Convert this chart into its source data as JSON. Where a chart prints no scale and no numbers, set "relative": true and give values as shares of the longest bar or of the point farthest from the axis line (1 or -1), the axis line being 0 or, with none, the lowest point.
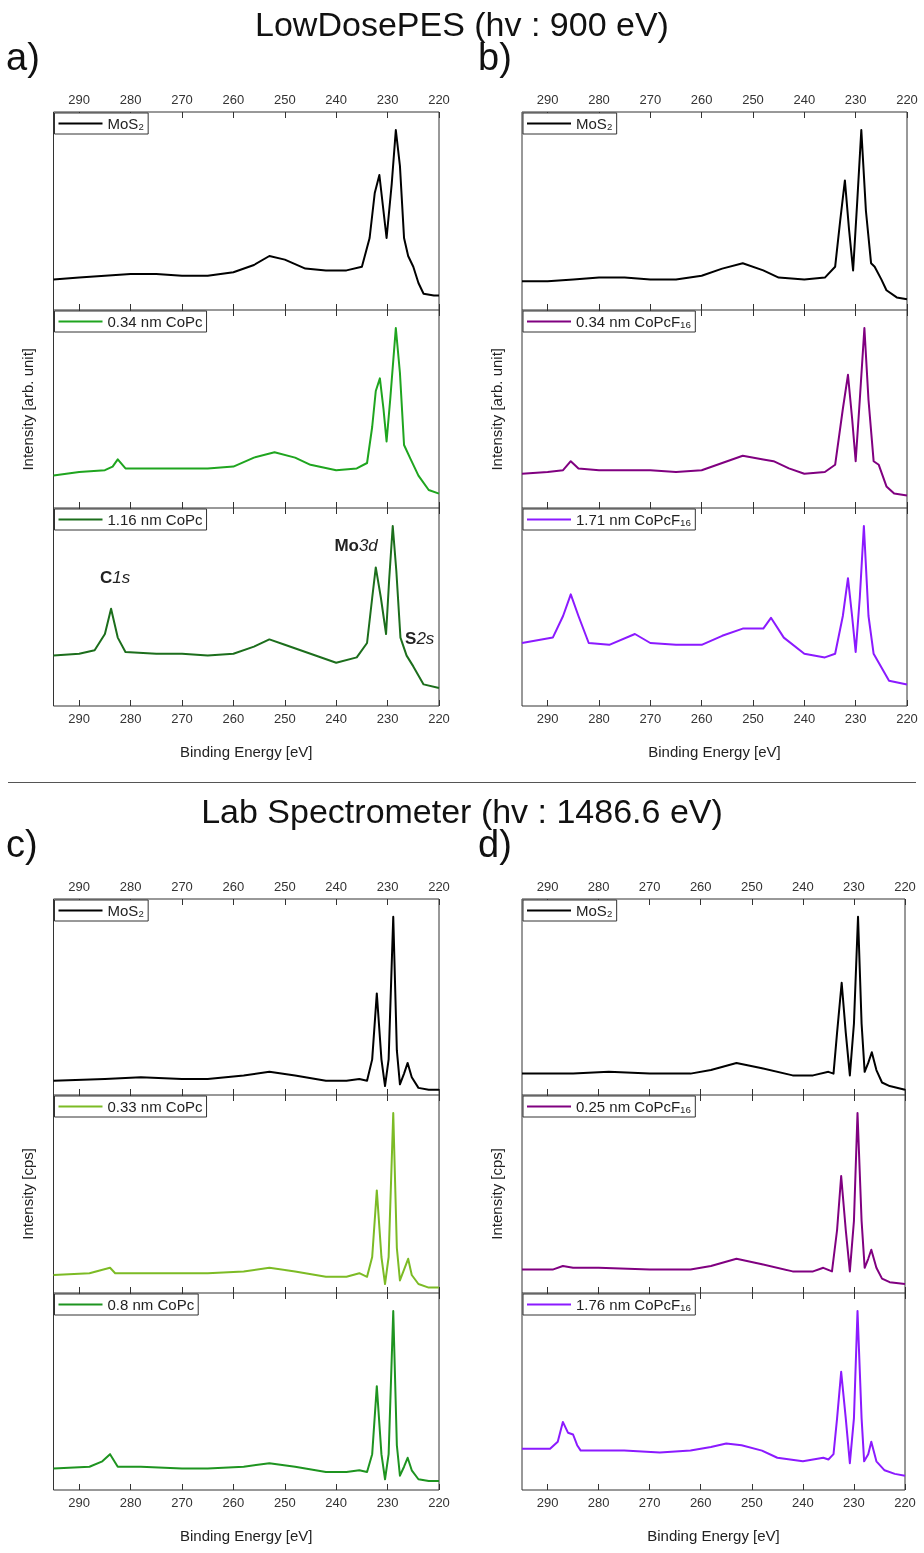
{
  "chart_data": [
    {
      "type": "line",
      "title": "LowDosePES (hv : 900 eV)",
      "annotations": [
        "a)"
      ],
      "relative": true,
      "xlim": [
        295,
        220
      ],
      "x2lim": [
        295,
        220
      ],
      "x2ticks": [
        290,
        280,
        270,
        260,
        250,
        240,
        230,
        220
      ],
      "tick_labels": "x2",
      "legend": "top left",
      "series": [
        {
          "name": "MoS₂",
          "color": "#000000",
          "x": [
            295,
            290,
            285,
            280,
            275,
            270,
            265,
            260,
            256,
            253,
            250,
            246,
            242,
            238,
            235,
            233.5,
            232.5,
            231.6,
            230.8,
            230.2,
            229.2,
            228.4,
            227.6,
            226.8,
            226,
            225,
            224,
            223,
            221,
            220
          ],
          "values": [
            0.17,
            0.18,
            0.19,
            0.2,
            0.2,
            0.19,
            0.19,
            0.21,
            0.25,
            0.3,
            0.28,
            0.23,
            0.22,
            0.22,
            0.24,
            0.4,
            0.65,
            0.75,
            0.55,
            0.4,
            0.7,
            1,
            0.8,
            0.4,
            0.3,
            0.24,
            0.15,
            0.09,
            0.08,
            0.08
          ]
        }
      ]
    },
    {
      "type": "line",
      "ylabel": "Intensity [arb. unit]",
      "relative": true,
      "xlim": [
        295,
        220
      ],
      "xticks": [
        290,
        280,
        270,
        260,
        250,
        240,
        230,
        220
      ],
      "tick_labels": false,
      "legend": "top left",
      "series": [
        {
          "name": "0.34 nm CoPc",
          "color": "#1fa51f",
          "x": [
            295,
            290,
            285,
            283.5,
            282.5,
            281,
            275,
            270,
            265,
            260,
            256,
            252,
            248,
            245,
            240,
            236,
            234,
            233,
            232.3,
            231.5,
            230.8,
            230.2,
            229.5,
            228.4,
            227.6,
            226.8,
            225.5,
            224,
            222,
            220
          ],
          "values": [
            0.18,
            0.2,
            0.21,
            0.23,
            0.27,
            0.22,
            0.22,
            0.22,
            0.22,
            0.23,
            0.28,
            0.31,
            0.28,
            0.24,
            0.21,
            0.22,
            0.25,
            0.45,
            0.65,
            0.72,
            0.55,
            0.37,
            0.6,
            1,
            0.75,
            0.35,
            0.27,
            0.18,
            0.1,
            0.08
          ]
        }
      ]
    },
    {
      "type": "line",
      "xlabel": "Binding Energy [eV]",
      "relative": true,
      "xlim": [
        295,
        220
      ],
      "xticks": [
        290,
        280,
        270,
        260,
        250,
        240,
        230,
        220
      ],
      "tick_labels": "x",
      "legend": "top left",
      "annotations": [
        "C1s",
        "Mo3d",
        "S2s"
      ],
      "series": [
        {
          "name": "1.16 nm CoPc",
          "color": "#1c6e1c",
          "x": [
            295,
            290,
            287,
            285,
            283.8,
            282.5,
            281,
            275,
            270,
            265,
            260,
            256,
            253,
            250,
            245,
            240,
            236,
            234,
            233,
            232.3,
            231.3,
            230.3,
            229.7,
            229,
            228.3,
            227.5,
            226.3,
            225,
            223,
            220
          ],
          "values": [
            0.28,
            0.29,
            0.31,
            0.4,
            0.54,
            0.38,
            0.3,
            0.29,
            0.29,
            0.28,
            0.29,
            0.33,
            0.37,
            0.34,
            0.29,
            0.24,
            0.27,
            0.35,
            0.6,
            0.77,
            0.6,
            0.4,
            0.7,
            1,
            0.75,
            0.38,
            0.28,
            0.22,
            0.12,
            0.1
          ]
        }
      ]
    },
    {
      "type": "line",
      "annotations": [
        "b)"
      ],
      "relative": true,
      "xlim": [
        295,
        220
      ],
      "x2lim": [
        295,
        220
      ],
      "x2ticks": [
        290,
        280,
        270,
        260,
        250,
        240,
        230,
        220
      ],
      "tick_labels": "x2",
      "legend": "top left",
      "series": [
        {
          "name": "MoS₂",
          "color": "#000000",
          "x": [
            295,
            290,
            285,
            280,
            275,
            270,
            265,
            260,
            256,
            252,
            248,
            245,
            240,
            236,
            234,
            233,
            232.1,
            231.3,
            230.5,
            229.7,
            228.9,
            228,
            227,
            226.3,
            225,
            224,
            222,
            220
          ],
          "values": [
            0.16,
            0.16,
            0.17,
            0.18,
            0.18,
            0.17,
            0.17,
            0.19,
            0.23,
            0.26,
            0.22,
            0.18,
            0.17,
            0.18,
            0.24,
            0.5,
            0.72,
            0.45,
            0.22,
            0.6,
            1,
            0.55,
            0.26,
            0.24,
            0.17,
            0.11,
            0.07,
            0.06
          ]
        }
      ]
    },
    {
      "type": "line",
      "ylabel": "Intensity [arb. unit]",
      "relative": true,
      "xlim": [
        295,
        220
      ],
      "xticks": [
        290,
        280,
        270,
        260,
        250,
        240,
        230,
        220
      ],
      "tick_labels": false,
      "legend": "top left",
      "series": [
        {
          "name": "0.34 nm CoPcF₁₆",
          "color": "#800080",
          "x": [
            295,
            290,
            287,
            285.5,
            284,
            280,
            275,
            270,
            265,
            260,
            256,
            252,
            248,
            246,
            243,
            240,
            236,
            234,
            232.5,
            231.5,
            230.7,
            230,
            229.2,
            228.3,
            227.5,
            226.5,
            225.5,
            224,
            222.5,
            220
          ],
          "values": [
            0.19,
            0.2,
            0.21,
            0.26,
            0.22,
            0.21,
            0.21,
            0.21,
            0.2,
            0.21,
            0.25,
            0.29,
            0.27,
            0.26,
            0.22,
            0.19,
            0.2,
            0.24,
            0.55,
            0.74,
            0.5,
            0.26,
            0.6,
            1,
            0.6,
            0.26,
            0.24,
            0.12,
            0.08,
            0.07
          ]
        }
      ]
    },
    {
      "type": "line",
      "xlabel": "Binding Energy [eV]",
      "relative": true,
      "xlim": [
        295,
        220
      ],
      "xticks": [
        290,
        280,
        270,
        260,
        250,
        240,
        230,
        220
      ],
      "tick_labels": "x",
      "legend": "top left",
      "series": [
        {
          "name": "1.71 nm CoPcF₁₆",
          "color": "#8b1aff",
          "x": [
            295,
            289,
            287,
            285.5,
            284,
            282,
            278,
            273,
            270,
            265,
            260,
            256,
            252,
            248,
            246.5,
            244,
            240,
            236,
            234,
            232.5,
            231.5,
            230.7,
            230,
            229.2,
            228.4,
            227.5,
            226.5,
            225.5,
            223.5,
            220
          ],
          "values": [
            0.35,
            0.38,
            0.5,
            0.62,
            0.5,
            0.35,
            0.34,
            0.4,
            0.35,
            0.34,
            0.34,
            0.39,
            0.43,
            0.43,
            0.49,
            0.38,
            0.29,
            0.27,
            0.29,
            0.5,
            0.71,
            0.5,
            0.3,
            0.6,
            1,
            0.5,
            0.29,
            0.24,
            0.14,
            0.12
          ]
        }
      ]
    },
    {
      "type": "line",
      "title": "Lab Spectrometer (hv : 1486.6 eV)",
      "annotations": [
        "c)"
      ],
      "relative": true,
      "xlim": [
        295,
        220
      ],
      "x2lim": [
        295,
        220
      ],
      "x2ticks": [
        290,
        280,
        270,
        260,
        250,
        240,
        230,
        220
      ],
      "tick_labels": "x2",
      "legend": "top left",
      "series": [
        {
          "name": "MoS₂",
          "color": "#000000",
          "x": [
            295,
            285,
            278,
            270,
            265,
            258,
            253,
            248,
            242,
            238,
            235.5,
            234,
            233,
            232.1,
            231.2,
            230.5,
            229.8,
            228.9,
            228.2,
            227.6,
            226.8,
            226.1,
            225.3,
            224,
            222,
            220
          ],
          "values": [
            0.08,
            0.09,
            0.1,
            0.09,
            0.09,
            0.11,
            0.13,
            0.11,
            0.08,
            0.08,
            0.09,
            0.08,
            0.2,
            0.57,
            0.2,
            0.05,
            0.2,
            1,
            0.25,
            0.06,
            0.12,
            0.18,
            0.1,
            0.04,
            0.03,
            0.03
          ]
        }
      ]
    },
    {
      "type": "line",
      "ylabel": "Intensity [cps]",
      "relative": true,
      "xlim": [
        295,
        220
      ],
      "xticks": [
        290,
        280,
        270,
        260,
        250,
        240,
        230,
        220
      ],
      "tick_labels": false,
      "legend": "top left",
      "series": [
        {
          "name": "0.33 nm CoPc",
          "color": "#7cbb25",
          "x": [
            295,
            288,
            284,
            283,
            278,
            270,
            265,
            258,
            253,
            248,
            242,
            238,
            235.5,
            234,
            233,
            232.1,
            231.2,
            230.5,
            229.8,
            228.9,
            228.2,
            227.6,
            226.8,
            226,
            225.3,
            224,
            222,
            220
          ],
          "values": [
            0.1,
            0.11,
            0.14,
            0.11,
            0.11,
            0.11,
            0.11,
            0.12,
            0.14,
            0.12,
            0.09,
            0.09,
            0.11,
            0.09,
            0.2,
            0.57,
            0.2,
            0.05,
            0.2,
            1,
            0.25,
            0.07,
            0.13,
            0.19,
            0.1,
            0.05,
            0.03,
            0.03
          ]
        }
      ]
    },
    {
      "type": "line",
      "xlabel": "Binding Energy [eV]",
      "relative": true,
      "xlim": [
        295,
        220
      ],
      "xticks": [
        290,
        280,
        270,
        260,
        250,
        240,
        230,
        220
      ],
      "tick_labels": "x",
      "legend": "top left",
      "series": [
        {
          "name": "0.8 nm CoPc",
          "color": "#1e9420",
          "x": [
            295,
            288,
            285.5,
            284,
            282.5,
            278,
            270,
            265,
            258,
            253,
            248,
            242,
            238,
            235.5,
            234,
            233,
            232.1,
            231.2,
            230.5,
            229.8,
            228.9,
            228.2,
            227.6,
            226.8,
            226.1,
            225.3,
            224,
            222,
            220
          ],
          "values": [
            0.12,
            0.13,
            0.16,
            0.2,
            0.13,
            0.13,
            0.12,
            0.12,
            0.13,
            0.15,
            0.13,
            0.1,
            0.1,
            0.11,
            0.1,
            0.2,
            0.58,
            0.2,
            0.06,
            0.2,
            1,
            0.25,
            0.08,
            0.13,
            0.18,
            0.11,
            0.06,
            0.05,
            0.05
          ]
        }
      ]
    },
    {
      "type": "line",
      "annotations": [
        "d)"
      ],
      "relative": true,
      "xlim": [
        295,
        220
      ],
      "x2lim": [
        295,
        220
      ],
      "x2ticks": [
        290,
        280,
        270,
        260,
        250,
        240,
        230,
        220
      ],
      "tick_labels": "x2",
      "legend": "top left",
      "series": [
        {
          "name": "MoS₂",
          "color": "#000000",
          "x": [
            295,
            285,
            278,
            270,
            262,
            258,
            253,
            248,
            242,
            238,
            235,
            234,
            233.3,
            232.4,
            231.6,
            230.8,
            230,
            229.2,
            228.5,
            227.9,
            227.2,
            226.5,
            225.6,
            224.5,
            223,
            220
          ],
          "values": [
            0.12,
            0.12,
            0.13,
            0.12,
            0.12,
            0.14,
            0.18,
            0.15,
            0.11,
            0.11,
            0.13,
            0.12,
            0.35,
            0.63,
            0.35,
            0.11,
            0.4,
            1,
            0.4,
            0.13,
            0.18,
            0.24,
            0.14,
            0.07,
            0.05,
            0.03
          ]
        }
      ]
    },
    {
      "type": "line",
      "ylabel": "Intensity [cps]",
      "relative": true,
      "xlim": [
        295,
        220
      ],
      "xticks": [
        290,
        280,
        270,
        260,
        250,
        240,
        230,
        220
      ],
      "tick_labels": false,
      "legend": "top left",
      "series": [
        {
          "name": "0.25 nm CoPcF₁₆",
          "color": "#800080",
          "x": [
            295,
            289,
            287,
            285,
            280,
            270,
            262,
            258,
            253,
            248,
            242,
            238,
            236,
            234.3,
            233.3,
            232.5,
            231.6,
            230.8,
            230,
            229.3,
            228.5,
            227.9,
            227.2,
            226.6,
            225.6,
            224.5,
            223,
            220
          ],
          "values": [
            0.13,
            0.13,
            0.15,
            0.14,
            0.14,
            0.13,
            0.13,
            0.15,
            0.19,
            0.16,
            0.12,
            0.12,
            0.14,
            0.12,
            0.35,
            0.65,
            0.35,
            0.12,
            0.4,
            1,
            0.4,
            0.14,
            0.19,
            0.24,
            0.14,
            0.08,
            0.06,
            0.05
          ]
        }
      ]
    },
    {
      "type": "line",
      "xlabel": "Binding Energy [eV]",
      "relative": true,
      "xlim": [
        295,
        220
      ],
      "xticks": [
        290,
        280,
        270,
        260,
        250,
        240,
        230,
        220
      ],
      "tick_labels": "x",
      "legend": "top left",
      "series": [
        {
          "name": "1.76 nm CoPcF₁₆",
          "color": "#8b1aff",
          "x": [
            295,
            289.5,
            288,
            287,
            286,
            285,
            284.2,
            283.5,
            280,
            275,
            268,
            262,
            258,
            255,
            252,
            248,
            245,
            240,
            236,
            235,
            234,
            233.3,
            232.5,
            231.6,
            230.8,
            230,
            229.3,
            228.5,
            228,
            227.2,
            226.6,
            225.6,
            224,
            222,
            220
          ],
          "values": [
            0.23,
            0.23,
            0.27,
            0.38,
            0.32,
            0.31,
            0.25,
            0.22,
            0.22,
            0.22,
            0.21,
            0.22,
            0.24,
            0.26,
            0.25,
            0.22,
            0.18,
            0.16,
            0.18,
            0.17,
            0.2,
            0.4,
            0.66,
            0.4,
            0.15,
            0.4,
            1,
            0.4,
            0.16,
            0.2,
            0.27,
            0.16,
            0.11,
            0.09,
            0.08
          ]
        }
      ]
    }
  ]
}
